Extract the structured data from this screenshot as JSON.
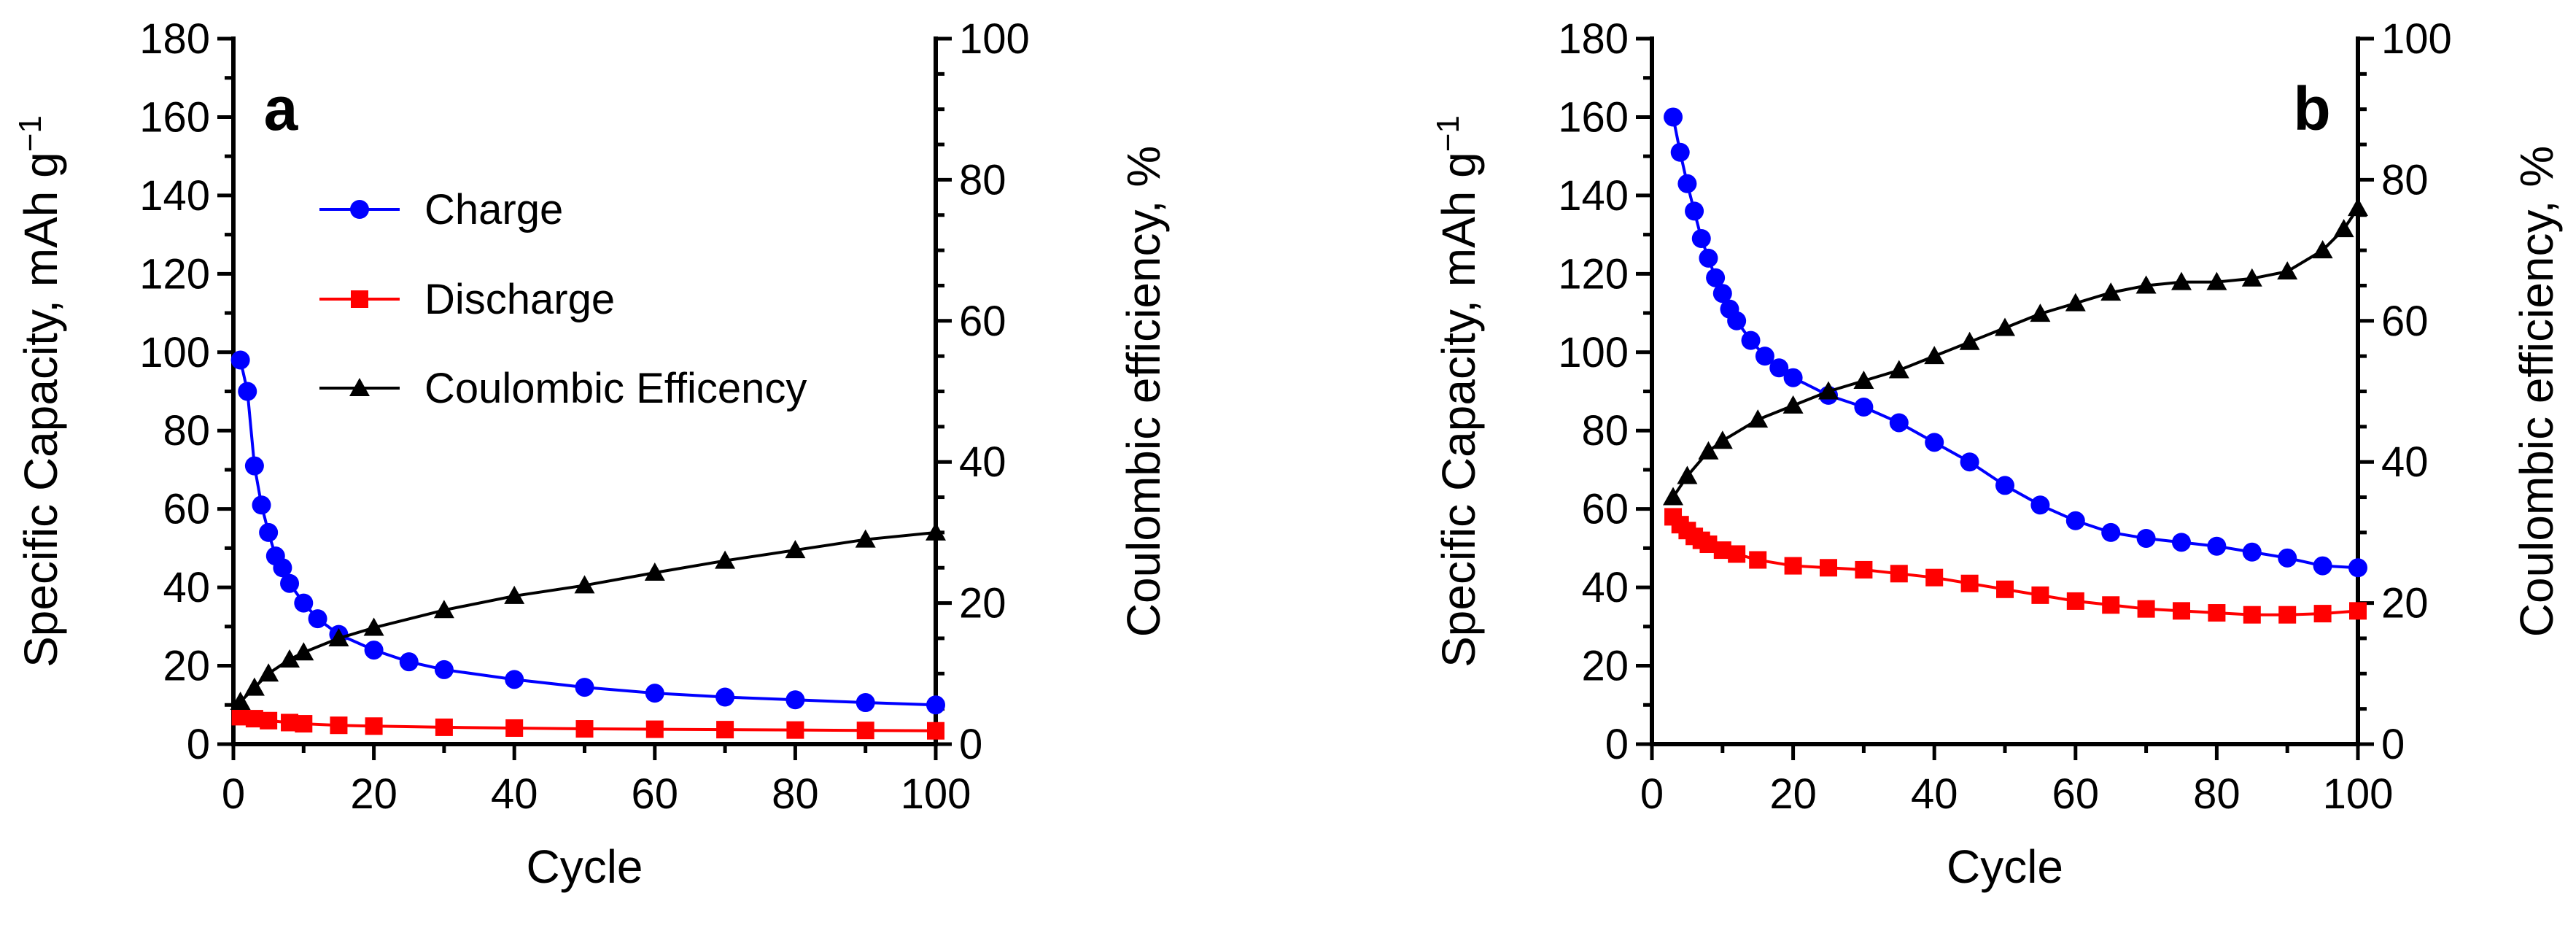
{
  "chart_data": [
    {
      "panel": "a",
      "type": "line",
      "xlabel": "Cycle",
      "ylabel": "Specific Capacity, mAh g",
      "ylabel_sup": "−1",
      "y2label": "Coulombic efficiency, %",
      "xlim": [
        0,
        100
      ],
      "ylim": [
        0,
        180
      ],
      "y2lim": [
        0,
        100
      ],
      "xticks": [
        0,
        20,
        40,
        60,
        80,
        100
      ],
      "yticks": [
        0,
        20,
        40,
        60,
        80,
        100,
        120,
        140,
        160,
        180
      ],
      "y2ticks": [
        0,
        20,
        40,
        60,
        80,
        100
      ],
      "legend": {
        "placement": "upper-center",
        "entries": [
          "Charge",
          "Discharge",
          "Coulombic Efficency"
        ]
      },
      "series": [
        {
          "name": "Charge",
          "axis": "left",
          "color": "#0000ff",
          "marker": "circle",
          "x": [
            1,
            2,
            3,
            4,
            5,
            6,
            7,
            8,
            10,
            12,
            15,
            20,
            25,
            30,
            40,
            50,
            60,
            70,
            80,
            90,
            100
          ],
          "y": [
            98,
            90,
            71,
            61,
            54,
            48,
            45,
            41,
            36,
            32,
            28,
            24,
            21,
            19,
            16.5,
            14.5,
            13,
            12,
            11.3,
            10.6,
            10
          ]
        },
        {
          "name": "Discharge",
          "axis": "left",
          "color": "#ff0000",
          "marker": "square",
          "x": [
            1,
            3,
            5,
            8,
            10,
            15,
            20,
            30,
            40,
            50,
            60,
            70,
            80,
            90,
            100
          ],
          "y": [
            7,
            6.5,
            6,
            5.5,
            5.2,
            4.8,
            4.6,
            4.3,
            4.1,
            3.9,
            3.8,
            3.7,
            3.6,
            3.5,
            3.4
          ]
        },
        {
          "name": "Coulombic Efficency",
          "axis": "right",
          "color": "#000000",
          "marker": "triangle",
          "x": [
            1,
            3,
            5,
            8,
            10,
            15,
            20,
            30,
            40,
            50,
            60,
            70,
            80,
            90,
            100
          ],
          "y": [
            6,
            8,
            10,
            12,
            13,
            15,
            16.5,
            19,
            21,
            22.5,
            24.3,
            26,
            27.5,
            29,
            30
          ]
        }
      ]
    },
    {
      "panel": "b",
      "type": "line",
      "xlabel": "Cycle",
      "ylabel": "Specific Capacity, mAh g",
      "ylabel_sup": "−1",
      "y2label": "Coulombic efficiency, %",
      "xlim": [
        0,
        100
      ],
      "ylim": [
        0,
        180
      ],
      "y2lim": [
        0,
        100
      ],
      "xticks": [
        0,
        20,
        40,
        60,
        80,
        100
      ],
      "yticks": [
        0,
        20,
        40,
        60,
        80,
        100,
        120,
        140,
        160,
        180
      ],
      "y2ticks": [
        0,
        20,
        40,
        60,
        80,
        100
      ],
      "series": [
        {
          "name": "Charge",
          "axis": "left",
          "color": "#0000ff",
          "marker": "circle",
          "x": [
            3,
            4,
            5,
            6,
            7,
            8,
            9,
            10,
            11,
            12,
            14,
            16,
            18,
            20,
            25,
            30,
            35,
            40,
            45,
            50,
            55,
            60,
            65,
            70,
            75,
            80,
            85,
            90,
            95,
            100
          ],
          "y": [
            160,
            151,
            143,
            136,
            129,
            124,
            119,
            115,
            111,
            108,
            103,
            99,
            96,
            93.5,
            89,
            86,
            82,
            77,
            72,
            66,
            61,
            57,
            54,
            52.5,
            51.5,
            50.5,
            49,
            47.5,
            45.5,
            45
          ]
        },
        {
          "name": "Discharge",
          "axis": "left",
          "color": "#ff0000",
          "marker": "square",
          "x": [
            3,
            4,
            5,
            6,
            7,
            8,
            10,
            12,
            15,
            20,
            25,
            30,
            35,
            40,
            45,
            50,
            55,
            60,
            65,
            70,
            75,
            80,
            85,
            90,
            95,
            100
          ],
          "y": [
            58,
            56,
            54.5,
            53,
            52,
            51,
            49.5,
            48.5,
            47,
            45.5,
            45,
            44.5,
            43.5,
            42.5,
            41,
            39.5,
            38,
            36.5,
            35.5,
            34.5,
            34,
            33.5,
            33,
            33,
            33.3,
            34
          ]
        },
        {
          "name": "Coulombic Efficency",
          "axis": "right",
          "color": "#000000",
          "marker": "triangle",
          "x": [
            3,
            5,
            8,
            10,
            15,
            20,
            25,
            30,
            35,
            40,
            45,
            50,
            55,
            60,
            65,
            70,
            75,
            80,
            85,
            90,
            95,
            98,
            100
          ],
          "y": [
            35,
            38,
            41.5,
            43,
            46,
            48,
            50,
            51.5,
            53,
            55,
            57,
            59,
            61,
            62.5,
            64,
            65,
            65.5,
            65.5,
            66,
            67,
            70,
            73,
            76
          ]
        }
      ]
    }
  ]
}
